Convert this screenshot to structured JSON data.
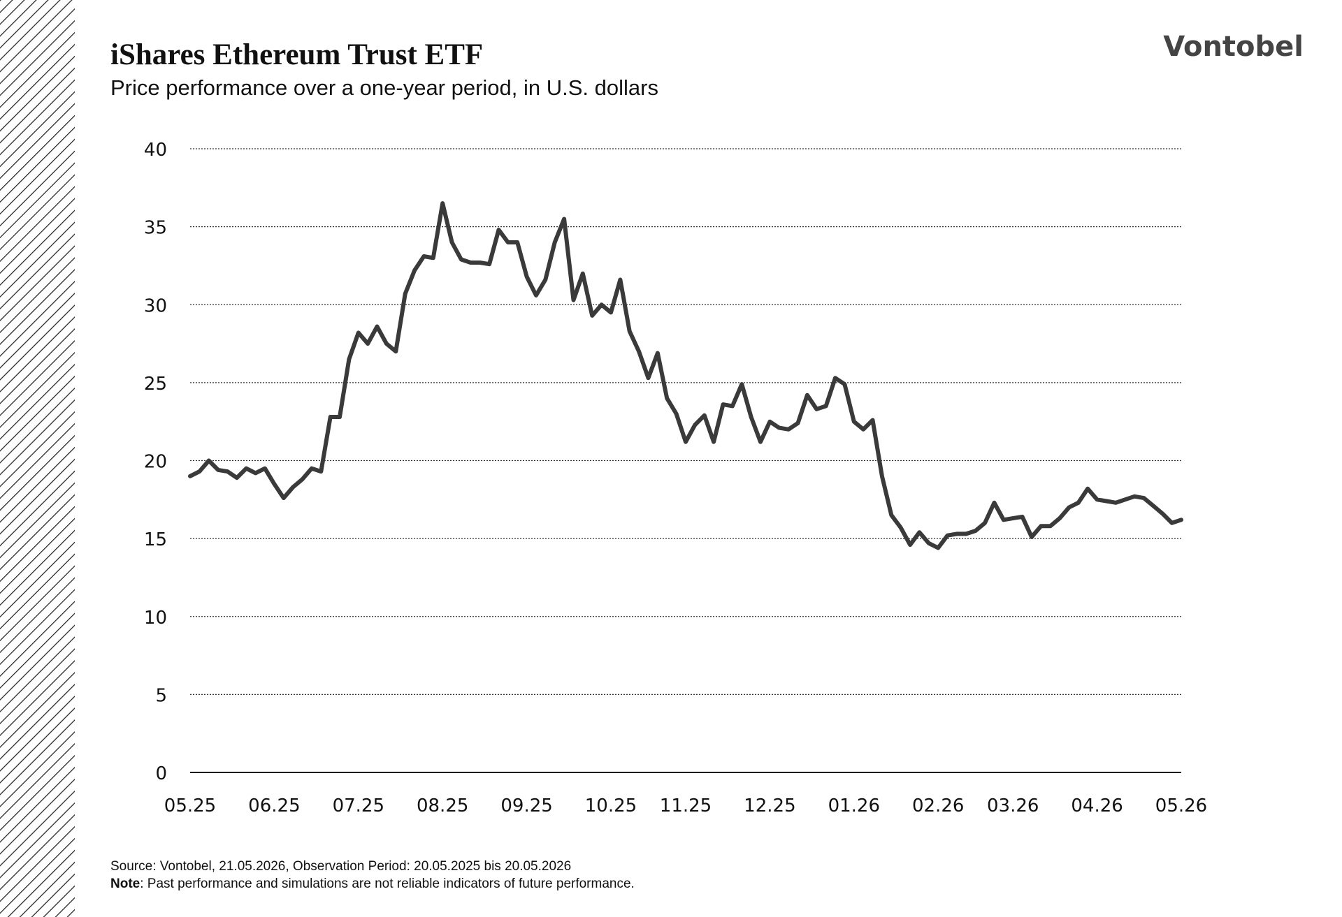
{
  "brand": "Vontobel",
  "chart_data": {
    "type": "line",
    "title": "iShares Ethereum Trust ETF",
    "subtitle": "Price performance over a one-year period, in U.S. dollars",
    "categories": [
      "05.25",
      null,
      null,
      null,
      null,
      null,
      null,
      null,
      null,
      "06.25",
      null,
      null,
      null,
      null,
      null,
      null,
      null,
      null,
      "07.25",
      null,
      null,
      null,
      null,
      null,
      null,
      null,
      null,
      "08.25",
      null,
      null,
      null,
      null,
      null,
      null,
      null,
      null,
      "09.25",
      null,
      null,
      null,
      null,
      null,
      null,
      null,
      null,
      "10.25",
      null,
      null,
      null,
      null,
      null,
      null,
      null,
      "11.25",
      null,
      null,
      null,
      null,
      null,
      null,
      null,
      null,
      "12.25",
      null,
      null,
      null,
      null,
      null,
      null,
      null,
      null,
      "01.26",
      null,
      null,
      null,
      null,
      null,
      null,
      null,
      null,
      "02.26",
      null,
      null,
      null,
      null,
      null,
      null,
      null,
      "03.26",
      null,
      null,
      null,
      null,
      null,
      null,
      null,
      null,
      "04.26",
      null,
      null,
      null,
      null,
      null,
      null,
      null,
      null,
      "05.26"
    ],
    "values": [
      19.0,
      19.3,
      20.0,
      19.4,
      19.3,
      18.9,
      19.5,
      19.2,
      19.5,
      18.5,
      17.6,
      18.3,
      18.8,
      19.5,
      19.3,
      22.8,
      22.8,
      26.5,
      28.2,
      27.5,
      28.6,
      27.5,
      27.0,
      30.7,
      32.2,
      33.1,
      33.0,
      36.5,
      34.0,
      32.9,
      32.7,
      32.7,
      32.6,
      34.8,
      34.0,
      34.0,
      31.8,
      30.6,
      31.6,
      34.0,
      35.5,
      30.3,
      32.0,
      29.3,
      30.0,
      29.5,
      31.6,
      28.3,
      27.0,
      25.3,
      26.9,
      24.0,
      23.0,
      21.2,
      22.3,
      22.9,
      21.2,
      23.6,
      23.5,
      24.9,
      22.8,
      21.2,
      22.5,
      22.1,
      22.0,
      22.4,
      24.2,
      23.3,
      23.5,
      25.3,
      24.9,
      22.5,
      22.0,
      22.6,
      19.0,
      16.5,
      15.7,
      14.6,
      15.4,
      14.7,
      14.4,
      15.2,
      15.3,
      15.3,
      15.5,
      16.0,
      17.3,
      16.2,
      16.3,
      16.4,
      15.1,
      15.8,
      15.8,
      16.3,
      17.0,
      17.3,
      18.2,
      17.5,
      17.4,
      17.3,
      17.5,
      17.7,
      17.6,
      17.1,
      16.6,
      16.0,
      16.2
    ],
    "color": "#3a3a3a",
    "ylim": [
      0,
      40
    ],
    "yticks": [
      0,
      5,
      10,
      15,
      20,
      25,
      30,
      35,
      40
    ],
    "grid": true
  },
  "footer": {
    "source": "Source: Vontobel, 21.05.2026, Observation Period: 20.05.2025 bis 20.05.2026",
    "note_label": "Note",
    "note": ": Past performance and simulations are not reliable indicators of future performance."
  }
}
